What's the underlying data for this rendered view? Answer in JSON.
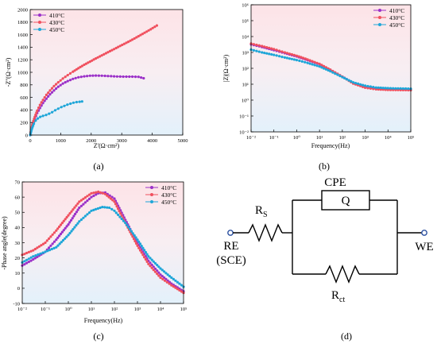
{
  "chart_data": [
    {
      "type": "scatter",
      "panel_label": "(a)",
      "xlabel": "Z'(Ω·cm²)",
      "ylabel": "-Z''(Ω·cm²)",
      "xlim": [
        0,
        5000
      ],
      "ylim": [
        0,
        2000
      ],
      "x_ticks": [
        0,
        1000,
        2000,
        3000,
        4000,
        5000
      ],
      "y_ticks": [
        0,
        200,
        400,
        600,
        800,
        1000,
        1200,
        1400,
        1600,
        1800,
        2000
      ],
      "legend": "top-left",
      "series": [
        {
          "name": "410°C",
          "color": "#9b30c8",
          "points": [
            [
              0,
              0
            ],
            [
              30,
              80
            ],
            [
              80,
              170
            ],
            [
              150,
              260
            ],
            [
              230,
              350
            ],
            [
              320,
              430
            ],
            [
              420,
              510
            ],
            [
              530,
              580
            ],
            [
              650,
              650
            ],
            [
              780,
              710
            ],
            [
              920,
              770
            ],
            [
              1070,
              820
            ],
            [
              1230,
              860
            ],
            [
              1400,
              895
            ],
            [
              1580,
              920
            ],
            [
              1770,
              935
            ],
            [
              1960,
              945
            ],
            [
              2150,
              948
            ],
            [
              2350,
              945
            ],
            [
              2550,
              940
            ],
            [
              2750,
              935
            ],
            [
              2950,
              932
            ],
            [
              3150,
              930
            ],
            [
              3350,
              930
            ],
            [
              3550,
              928
            ],
            [
              3720,
              905
            ]
          ]
        },
        {
          "name": "430°C",
          "color": "#f0505e",
          "points": [
            [
              0,
              0
            ],
            [
              30,
              90
            ],
            [
              80,
              190
            ],
            [
              150,
              290
            ],
            [
              230,
              390
            ],
            [
              320,
              480
            ],
            [
              420,
              560
            ],
            [
              530,
              640
            ],
            [
              650,
              710
            ],
            [
              780,
              780
            ],
            [
              920,
              840
            ],
            [
              1070,
              900
            ],
            [
              1230,
              955
            ],
            [
              1400,
              1010
            ],
            [
              1580,
              1065
            ],
            [
              1770,
              1120
            ],
            [
              1960,
              1170
            ],
            [
              2150,
              1220
            ],
            [
              2350,
              1270
            ],
            [
              2550,
              1320
            ],
            [
              2750,
              1370
            ],
            [
              2950,
              1420
            ],
            [
              3150,
              1470
            ],
            [
              3350,
              1520
            ],
            [
              3550,
              1575
            ],
            [
              3750,
              1630
            ],
            [
              3950,
              1685
            ],
            [
              4150,
              1745
            ]
          ]
        },
        {
          "name": "450°C",
          "color": "#1ea6d8",
          "points": [
            [
              0,
              0
            ],
            [
              30,
              60
            ],
            [
              70,
              120
            ],
            [
              120,
              180
            ],
            [
              180,
              230
            ],
            [
              250,
              265
            ],
            [
              330,
              290
            ],
            [
              420,
              305
            ],
            [
              520,
              320
            ],
            [
              620,
              340
            ],
            [
              720,
              365
            ],
            [
              820,
              395
            ],
            [
              920,
              420
            ],
            [
              1020,
              445
            ],
            [
              1120,
              465
            ],
            [
              1220,
              485
            ],
            [
              1320,
              500
            ],
            [
              1420,
              515
            ],
            [
              1520,
              525
            ],
            [
              1620,
              530
            ],
            [
              1700,
              535
            ]
          ]
        }
      ]
    },
    {
      "type": "line",
      "panel_label": "(b)",
      "xlabel": "Frequency(Hz)",
      "ylabel": "|Z|(Ω·cm²)",
      "x_scale": "log",
      "y_scale": "log",
      "xlim": [
        0.01,
        100000
      ],
      "ylim": [
        0.01,
        1000000
      ],
      "x_tick_labels": [
        "10⁻²",
        "10⁻¹",
        "10⁰",
        "10¹",
        "10²",
        "10³",
        "10⁴",
        "10⁵"
      ],
      "y_tick_labels": [
        "10⁻²",
        "10⁻¹",
        "10⁰",
        "10¹",
        "10²",
        "10³",
        "10⁴",
        "10⁵",
        "10⁶"
      ],
      "legend": "top-right",
      "series": [
        {
          "name": "410°C",
          "color": "#9b30c8",
          "points": [
            [
              0.01,
              3200
            ],
            [
              0.03,
              2200
            ],
            [
              0.1,
              1400
            ],
            [
              0.3,
              900
            ],
            [
              1,
              560
            ],
            [
              3,
              330
            ],
            [
              10,
              180
            ],
            [
              30,
              80
            ],
            [
              100,
              30
            ],
            [
              300,
              12
            ],
            [
              1000,
              7
            ],
            [
              3000,
              5.4
            ],
            [
              10000,
              4.9
            ],
            [
              100000,
              4.6
            ]
          ]
        },
        {
          "name": "430°C",
          "color": "#f0505e",
          "points": [
            [
              0.01,
              3600
            ],
            [
              0.03,
              2500
            ],
            [
              0.1,
              1600
            ],
            [
              0.3,
              1000
            ],
            [
              1,
              620
            ],
            [
              3,
              360
            ],
            [
              10,
              190
            ],
            [
              30,
              82
            ],
            [
              100,
              30
            ],
            [
              300,
              11
            ],
            [
              1000,
              6
            ],
            [
              3000,
              4.8
            ],
            [
              10000,
              4.4
            ],
            [
              100000,
              4.2
            ]
          ]
        },
        {
          "name": "450°C",
          "color": "#1ea6d8",
          "points": [
            [
              0.01,
              1500
            ],
            [
              0.03,
              1000
            ],
            [
              0.1,
              700
            ],
            [
              0.3,
              480
            ],
            [
              1,
              330
            ],
            [
              3,
              220
            ],
            [
              10,
              130
            ],
            [
              30,
              65
            ],
            [
              100,
              28
            ],
            [
              300,
              13
            ],
            [
              1000,
              8
            ],
            [
              3000,
              6.2
            ],
            [
              10000,
              5.6
            ],
            [
              100000,
              5.2
            ]
          ]
        }
      ]
    },
    {
      "type": "line",
      "panel_label": "(c)",
      "xlabel": "Frequency(Hz)",
      "ylabel": "-Phase angle(degree)",
      "x_scale": "log",
      "xlim": [
        0.01,
        100000
      ],
      "ylim": [
        -10,
        70
      ],
      "x_tick_labels": [
        "10⁻²",
        "10⁻¹",
        "10⁰",
        "10¹",
        "10²",
        "10³",
        "10⁴",
        "10⁵"
      ],
      "y_ticks": [
        -10,
        0,
        10,
        20,
        30,
        40,
        50,
        60,
        70
      ],
      "legend": "top-right",
      "series": [
        {
          "name": "410°C",
          "color": "#9b30c8",
          "points": [
            [
              0.01,
              15
            ],
            [
              0.03,
              19
            ],
            [
              0.1,
              24
            ],
            [
              0.3,
              32
            ],
            [
              1,
              42
            ],
            [
              3,
              53
            ],
            [
              10,
              60
            ],
            [
              20,
              62.5
            ],
            [
              40,
              63
            ],
            [
              100,
              59
            ],
            [
              300,
              45
            ],
            [
              1000,
              30
            ],
            [
              3000,
              18
            ],
            [
              10000,
              9
            ],
            [
              30000,
              3
            ],
            [
              100000,
              -2
            ]
          ]
        },
        {
          "name": "430°C",
          "color": "#f0505e",
          "points": [
            [
              0.01,
              22
            ],
            [
              0.03,
              25
            ],
            [
              0.1,
              30
            ],
            [
              0.3,
              38
            ],
            [
              1,
              48
            ],
            [
              3,
              57
            ],
            [
              10,
              62.5
            ],
            [
              20,
              63.5
            ],
            [
              40,
              62
            ],
            [
              100,
              57
            ],
            [
              300,
              43
            ],
            [
              1000,
              28
            ],
            [
              3000,
              16
            ],
            [
              10000,
              7
            ],
            [
              30000,
              2
            ],
            [
              100000,
              -3
            ]
          ]
        },
        {
          "name": "450°C",
          "color": "#1ea6d8",
          "points": [
            [
              0.01,
              17
            ],
            [
              0.03,
              21
            ],
            [
              0.1,
              24
            ],
            [
              0.3,
              27
            ],
            [
              1,
              35
            ],
            [
              3,
              44
            ],
            [
              10,
              51
            ],
            [
              30,
              53.5
            ],
            [
              60,
              53
            ],
            [
              100,
              51
            ],
            [
              300,
              43
            ],
            [
              1000,
              32
            ],
            [
              3000,
              21
            ],
            [
              10000,
              13
            ],
            [
              30000,
              7
            ],
            [
              100000,
              1
            ]
          ]
        }
      ]
    }
  ],
  "circuit": {
    "panel_label": "(d)",
    "cpe_label": "CPE",
    "q_label": "Q",
    "rs_main": "R",
    "rs_sub": "S",
    "rct_main": "R",
    "rct_sub": "ct",
    "re_label": "RE",
    "sce_label": "(SCE)",
    "we_label": "WE"
  },
  "colors": {
    "bg_top": "#fde3e7",
    "bg_bottom": "#e3f1fb",
    "terminal": "#2a4fa0"
  }
}
